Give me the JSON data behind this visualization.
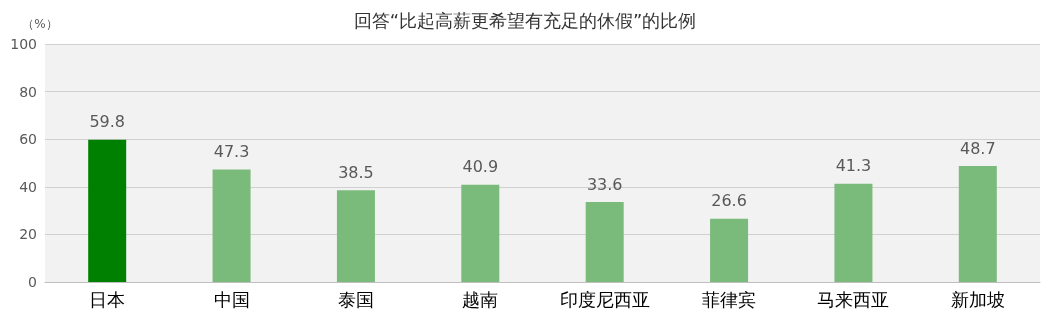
{
  "chart_data": {
    "type": "bar",
    "title": "回答“比起高薪更希望有充足的休假”的比例",
    "ylabel": "（%）",
    "categories": [
      "日本",
      "中国",
      "泰国",
      "越南",
      "印度尼西亚",
      "菲律宾",
      "马来西亚",
      "新加坡"
    ],
    "values": [
      59.8,
      47.3,
      38.5,
      40.9,
      33.6,
      26.6,
      41.3,
      48.7
    ],
    "colors": [
      "#008000",
      "#7aba7a",
      "#7aba7a",
      "#7aba7a",
      "#7aba7a",
      "#7aba7a",
      "#7aba7a",
      "#7aba7a"
    ],
    "ylim": [
      0,
      100
    ],
    "yticks": [
      0,
      20,
      40,
      60,
      80,
      100
    ],
    "grid": "y",
    "data_labels": true
  }
}
